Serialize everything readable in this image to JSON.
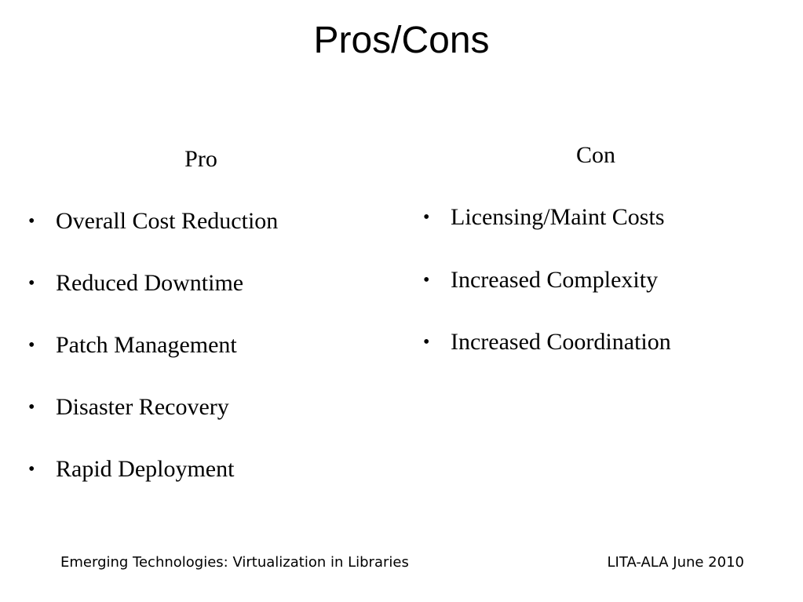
{
  "slide": {
    "title": "Pros/Cons"
  },
  "pro": {
    "heading": "Pro",
    "items": [
      "Overall Cost Reduction",
      "Reduced Downtime",
      "Patch Management",
      "Disaster Recovery",
      "Rapid Deployment"
    ]
  },
  "con": {
    "heading": "Con",
    "items": [
      "Licensing/Maint Costs",
      "Increased Complexity",
      "Increased Coordination"
    ]
  },
  "bullet_glyph": "•",
  "footer": {
    "left": "Emerging Technologies: Virtualization in Libraries",
    "right": "LITA-ALA June 2010"
  }
}
